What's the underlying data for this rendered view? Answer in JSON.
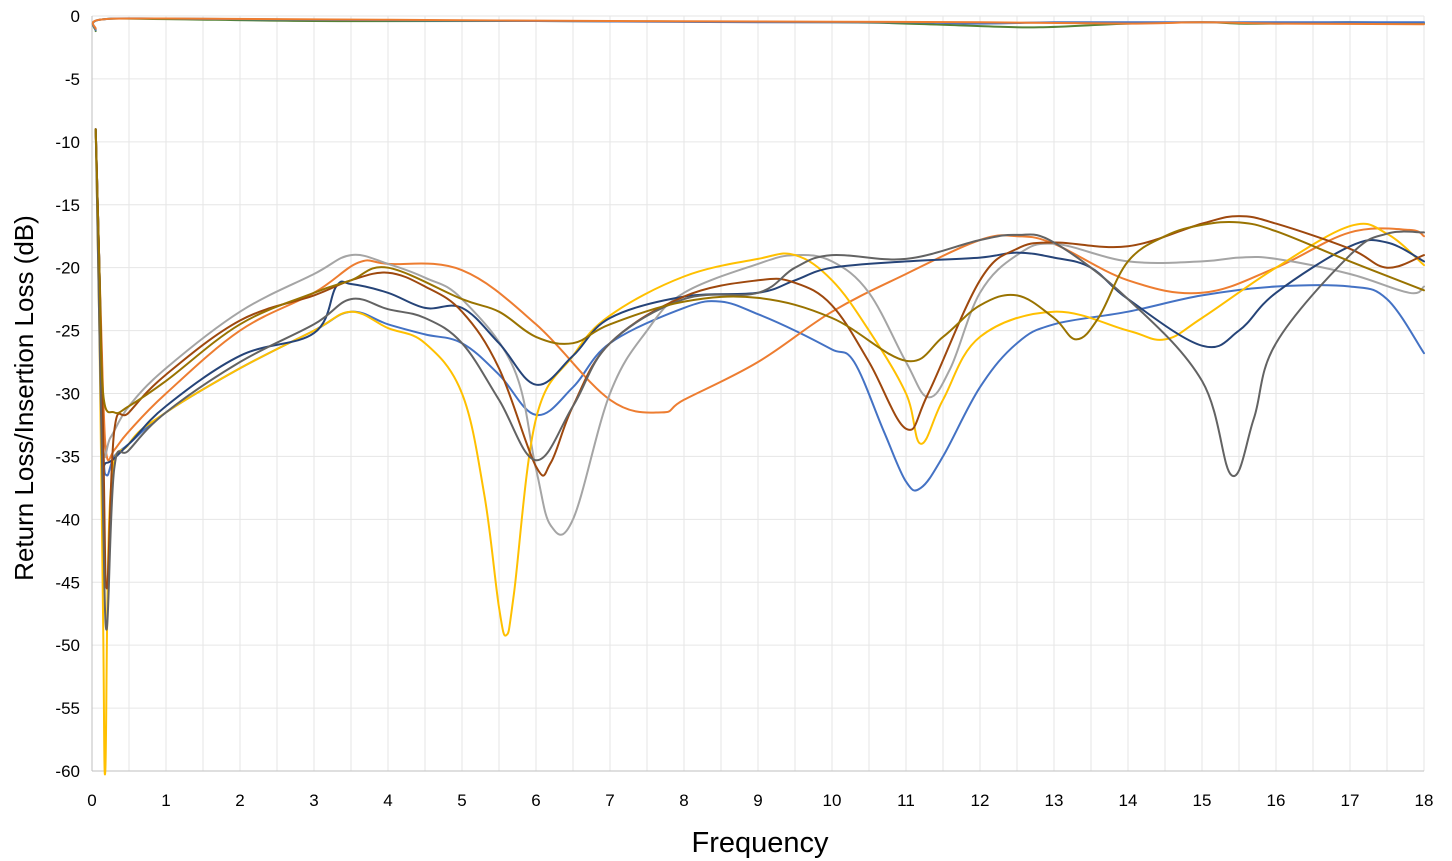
{
  "chart_data": {
    "type": "line",
    "xlabel": "Frequency",
    "ylabel": "Return Loss/Insertion Loss (dB)",
    "xlim": [
      0,
      18
    ],
    "ylim": [
      -60,
      0
    ],
    "x_ticks": [
      "0",
      "1",
      "2",
      "3",
      "4",
      "5",
      "6",
      "7",
      "8",
      "9",
      "10",
      "11",
      "12",
      "13",
      "14",
      "15",
      "16",
      "17",
      "18"
    ],
    "y_ticks": [
      "0",
      "-5",
      "-10",
      "-15",
      "-20",
      "-25",
      "-30",
      "-35",
      "-40",
      "-45",
      "-50",
      "-55",
      "-60"
    ],
    "grid": "vertical-and-horizontal",
    "legend": "none",
    "series": [
      {
        "color": "#548235",
        "points": [
          [
            0.05,
            -1.2
          ],
          [
            0.1,
            -0.3
          ],
          [
            1,
            -0.25
          ],
          [
            3,
            -0.4
          ],
          [
            6,
            -0.4
          ],
          [
            10,
            -0.5
          ],
          [
            11,
            -0.6
          ],
          [
            12,
            -0.8
          ],
          [
            12.8,
            -0.9
          ],
          [
            14,
            -0.6
          ],
          [
            15,
            -0.5
          ],
          [
            15.5,
            -0.6
          ],
          [
            16,
            -0.6
          ],
          [
            17,
            -0.5
          ],
          [
            18,
            -0.6
          ]
        ]
      },
      {
        "color": "#4472C4",
        "points": [
          [
            0.05,
            -1.1
          ],
          [
            0.1,
            -0.3
          ],
          [
            1,
            -0.2
          ],
          [
            3,
            -0.3
          ],
          [
            6,
            -0.4
          ],
          [
            9,
            -0.5
          ],
          [
            11,
            -0.5
          ],
          [
            12,
            -0.6
          ],
          [
            13,
            -0.5
          ],
          [
            14,
            -0.5
          ],
          [
            15,
            -0.5
          ],
          [
            16,
            -0.5
          ],
          [
            17,
            -0.5
          ],
          [
            18,
            -0.5
          ]
        ]
      },
      {
        "color": "#ED7D31",
        "points": [
          [
            0.05,
            -1.0
          ],
          [
            0.1,
            -0.3
          ],
          [
            1,
            -0.2
          ],
          [
            4,
            -0.3
          ],
          [
            7,
            -0.4
          ],
          [
            10,
            -0.45
          ],
          [
            12,
            -0.5
          ],
          [
            14,
            -0.6
          ],
          [
            15,
            -0.5
          ],
          [
            16,
            -0.6
          ],
          [
            18,
            -0.65
          ]
        ]
      },
      {
        "color": "#4472C4",
        "points": [
          [
            0.05,
            -9
          ],
          [
            0.1,
            -20
          ],
          [
            0.15,
            -34
          ],
          [
            0.2,
            -36.5
          ],
          [
            0.3,
            -35
          ],
          [
            0.5,
            -34
          ],
          [
            1,
            -31.5
          ],
          [
            2,
            -28
          ],
          [
            3,
            -25
          ],
          [
            3.5,
            -23.5
          ],
          [
            4,
            -24.5
          ],
          [
            4.5,
            -25.3
          ],
          [
            5,
            -26
          ],
          [
            5.5,
            -28.5
          ],
          [
            6,
            -31.7
          ],
          [
            6.5,
            -29.5
          ],
          [
            7,
            -26
          ],
          [
            8,
            -23.2
          ],
          [
            8.5,
            -22.7
          ],
          [
            9,
            -23.7
          ],
          [
            9.5,
            -25
          ],
          [
            10,
            -26.5
          ],
          [
            10.3,
            -27.5
          ],
          [
            10.7,
            -33
          ],
          [
            11,
            -37
          ],
          [
            11.2,
            -37.5
          ],
          [
            11.5,
            -35
          ],
          [
            12,
            -29.5
          ],
          [
            12.5,
            -26
          ],
          [
            13,
            -24.5
          ],
          [
            14,
            -23.5
          ],
          [
            15,
            -22.2
          ],
          [
            16,
            -21.5
          ],
          [
            17,
            -21.5
          ],
          [
            17.5,
            -22.5
          ],
          [
            18,
            -26.8
          ]
        ]
      },
      {
        "color": "#ED7D31",
        "points": [
          [
            0.05,
            -9
          ],
          [
            0.1,
            -20
          ],
          [
            0.15,
            -30
          ],
          [
            0.2,
            -35
          ],
          [
            0.3,
            -34.5
          ],
          [
            0.5,
            -33
          ],
          [
            1,
            -30
          ],
          [
            2,
            -25
          ],
          [
            3,
            -22
          ],
          [
            3.6,
            -19.6
          ],
          [
            4,
            -19.7
          ],
          [
            5,
            -20.2
          ],
          [
            6,
            -24.5
          ],
          [
            7,
            -30.5
          ],
          [
            7.7,
            -31.5
          ],
          [
            8,
            -30.5
          ],
          [
            9,
            -27.5
          ],
          [
            10,
            -23.5
          ],
          [
            11,
            -20.5
          ],
          [
            12,
            -17.8
          ],
          [
            12.5,
            -17.5
          ],
          [
            13,
            -18.1
          ],
          [
            14,
            -21
          ],
          [
            15,
            -22
          ],
          [
            16,
            -20
          ],
          [
            17,
            -17.2
          ],
          [
            17.8,
            -17
          ],
          [
            18,
            -17.5
          ]
        ]
      },
      {
        "color": "#A5A5A5",
        "points": [
          [
            0.05,
            -9
          ],
          [
            0.1,
            -20
          ],
          [
            0.15,
            -34
          ],
          [
            0.25,
            -33.5
          ],
          [
            0.5,
            -31
          ],
          [
            1,
            -28
          ],
          [
            2,
            -23.5
          ],
          [
            3,
            -20.5
          ],
          [
            3.5,
            -19
          ],
          [
            4,
            -19.7
          ],
          [
            4.5,
            -20.8
          ],
          [
            5,
            -22.5
          ],
          [
            5.7,
            -28
          ],
          [
            6,
            -36
          ],
          [
            6.2,
            -40.5
          ],
          [
            6.5,
            -40
          ],
          [
            7,
            -30
          ],
          [
            7.5,
            -25
          ],
          [
            8,
            -22
          ],
          [
            9,
            -19.7
          ],
          [
            9.5,
            -19
          ],
          [
            10,
            -19.5
          ],
          [
            10.5,
            -22
          ],
          [
            11,
            -27.5
          ],
          [
            11.3,
            -30.3
          ],
          [
            11.6,
            -28
          ],
          [
            12,
            -22
          ],
          [
            12.5,
            -19
          ],
          [
            13,
            -18.1
          ],
          [
            14,
            -19.5
          ],
          [
            15,
            -19.5
          ],
          [
            15.5,
            -19.2
          ],
          [
            16,
            -19.3
          ],
          [
            17,
            -20.5
          ],
          [
            17.8,
            -22
          ],
          [
            18,
            -21.5
          ]
        ]
      },
      {
        "color": "#FFC000",
        "points": [
          [
            0.05,
            -9
          ],
          [
            0.1,
            -25
          ],
          [
            0.15,
            -48
          ],
          [
            0.18,
            -60
          ],
          [
            0.25,
            -38
          ],
          [
            0.5,
            -34
          ],
          [
            1,
            -31.5
          ],
          [
            2,
            -28
          ],
          [
            3,
            -25
          ],
          [
            3.5,
            -23.5
          ],
          [
            4,
            -24.8
          ],
          [
            4.5,
            -26
          ],
          [
            5,
            -30
          ],
          [
            5.3,
            -38
          ],
          [
            5.5,
            -47
          ],
          [
            5.6,
            -49.2
          ],
          [
            5.7,
            -46
          ],
          [
            6,
            -32
          ],
          [
            6.5,
            -27
          ],
          [
            7,
            -23.8
          ],
          [
            8,
            -20.7
          ],
          [
            9,
            -19.3
          ],
          [
            9.5,
            -19
          ],
          [
            10,
            -21
          ],
          [
            10.5,
            -25
          ],
          [
            11,
            -30
          ],
          [
            11.2,
            -34
          ],
          [
            11.5,
            -30.5
          ],
          [
            12,
            -25.5
          ],
          [
            13,
            -23.5
          ],
          [
            14,
            -25
          ],
          [
            14.5,
            -25.7
          ],
          [
            15,
            -24
          ],
          [
            16,
            -20
          ],
          [
            17,
            -16.7
          ],
          [
            17.5,
            -17.3
          ],
          [
            18,
            -19.8
          ]
        ]
      },
      {
        "color": "#264478",
        "points": [
          [
            0.05,
            -9
          ],
          [
            0.1,
            -20
          ],
          [
            0.15,
            -34
          ],
          [
            0.2,
            -35.5
          ],
          [
            0.5,
            -34
          ],
          [
            1,
            -31
          ],
          [
            2,
            -27
          ],
          [
            3,
            -25.2
          ],
          [
            3.3,
            -21.5
          ],
          [
            3.5,
            -21.3
          ],
          [
            4,
            -22
          ],
          [
            4.5,
            -23.2
          ],
          [
            5,
            -23.2
          ],
          [
            5.5,
            -26
          ],
          [
            6,
            -29.3
          ],
          [
            6.5,
            -27
          ],
          [
            7,
            -24
          ],
          [
            8,
            -22.3
          ],
          [
            9,
            -22
          ],
          [
            9.5,
            -21
          ],
          [
            10,
            -20
          ],
          [
            11,
            -19.5
          ],
          [
            12,
            -19.2
          ],
          [
            12.5,
            -18.8
          ],
          [
            13,
            -19.2
          ],
          [
            13.5,
            -20
          ],
          [
            14,
            -22.5
          ],
          [
            15,
            -26.2
          ],
          [
            15.5,
            -25
          ],
          [
            16,
            -22
          ],
          [
            17,
            -18.3
          ],
          [
            17.5,
            -18
          ],
          [
            18,
            -19.5
          ]
        ]
      },
      {
        "color": "#9E480E",
        "points": [
          [
            0.05,
            -9
          ],
          [
            0.1,
            -20
          ],
          [
            0.15,
            -33
          ],
          [
            0.2,
            -45.5
          ],
          [
            0.3,
            -33
          ],
          [
            0.5,
            -31.5
          ],
          [
            1,
            -28.5
          ],
          [
            2,
            -24.2
          ],
          [
            3,
            -22.2
          ],
          [
            3.5,
            -21
          ],
          [
            4,
            -20.4
          ],
          [
            4.5,
            -21.5
          ],
          [
            5,
            -23.5
          ],
          [
            5.5,
            -28
          ],
          [
            6,
            -35.8
          ],
          [
            6.2,
            -35.5
          ],
          [
            6.5,
            -31
          ],
          [
            7,
            -26
          ],
          [
            8,
            -22.3
          ],
          [
            9,
            -21
          ],
          [
            9.5,
            -21.2
          ],
          [
            10,
            -23
          ],
          [
            10.5,
            -27.5
          ],
          [
            11,
            -32.8
          ],
          [
            11.3,
            -30
          ],
          [
            12,
            -21
          ],
          [
            12.5,
            -18.5
          ],
          [
            13,
            -18
          ],
          [
            14,
            -18.3
          ],
          [
            15,
            -16.5
          ],
          [
            15.5,
            -15.9
          ],
          [
            16,
            -16.5
          ],
          [
            17,
            -18.5
          ],
          [
            17.5,
            -20
          ],
          [
            18,
            -19
          ]
        ]
      },
      {
        "color": "#636363",
        "points": [
          [
            0.05,
            -9
          ],
          [
            0.1,
            -25
          ],
          [
            0.15,
            -40
          ],
          [
            0.2,
            -48.7
          ],
          [
            0.3,
            -36
          ],
          [
            0.5,
            -34.5
          ],
          [
            1,
            -31.5
          ],
          [
            2,
            -27.5
          ],
          [
            3,
            -24.5
          ],
          [
            3.5,
            -22.5
          ],
          [
            4,
            -23.3
          ],
          [
            4.5,
            -24
          ],
          [
            5,
            -26
          ],
          [
            5.5,
            -30.5
          ],
          [
            6,
            -35.3
          ],
          [
            6.5,
            -31
          ],
          [
            7,
            -26
          ],
          [
            8,
            -22.5
          ],
          [
            9,
            -22
          ],
          [
            9.5,
            -20
          ],
          [
            10,
            -19
          ],
          [
            11,
            -19.3
          ],
          [
            12,
            -17.8
          ],
          [
            12.5,
            -17.4
          ],
          [
            13,
            -18
          ],
          [
            14,
            -22.5
          ],
          [
            15,
            -29
          ],
          [
            15.4,
            -36.5
          ],
          [
            15.7,
            -32
          ],
          [
            16,
            -26
          ],
          [
            17,
            -19
          ],
          [
            17.5,
            -17.3
          ],
          [
            18,
            -17.2
          ]
        ]
      },
      {
        "color": "#997300",
        "points": [
          [
            0.05,
            -9
          ],
          [
            0.1,
            -20
          ],
          [
            0.15,
            -30
          ],
          [
            0.3,
            -31.5
          ],
          [
            0.5,
            -31
          ],
          [
            1,
            -29
          ],
          [
            2,
            -24.5
          ],
          [
            3,
            -22
          ],
          [
            3.5,
            -21
          ],
          [
            4,
            -20
          ],
          [
            5,
            -22.5
          ],
          [
            5.5,
            -23.5
          ],
          [
            6,
            -25.5
          ],
          [
            6.5,
            -26
          ],
          [
            7,
            -24.5
          ],
          [
            8,
            -22.7
          ],
          [
            9,
            -22.4
          ],
          [
            10,
            -24
          ],
          [
            11,
            -27.4
          ],
          [
            11.5,
            -25.5
          ],
          [
            12,
            -23
          ],
          [
            12.5,
            -22.2
          ],
          [
            13,
            -24
          ],
          [
            13.3,
            -25.7
          ],
          [
            13.6,
            -24
          ],
          [
            14,
            -19.5
          ],
          [
            14.5,
            -17.5
          ],
          [
            15,
            -16.6
          ],
          [
            15.5,
            -16.4
          ],
          [
            16,
            -17.1
          ],
          [
            17,
            -19.5
          ],
          [
            18,
            -21.8
          ]
        ]
      }
    ]
  }
}
